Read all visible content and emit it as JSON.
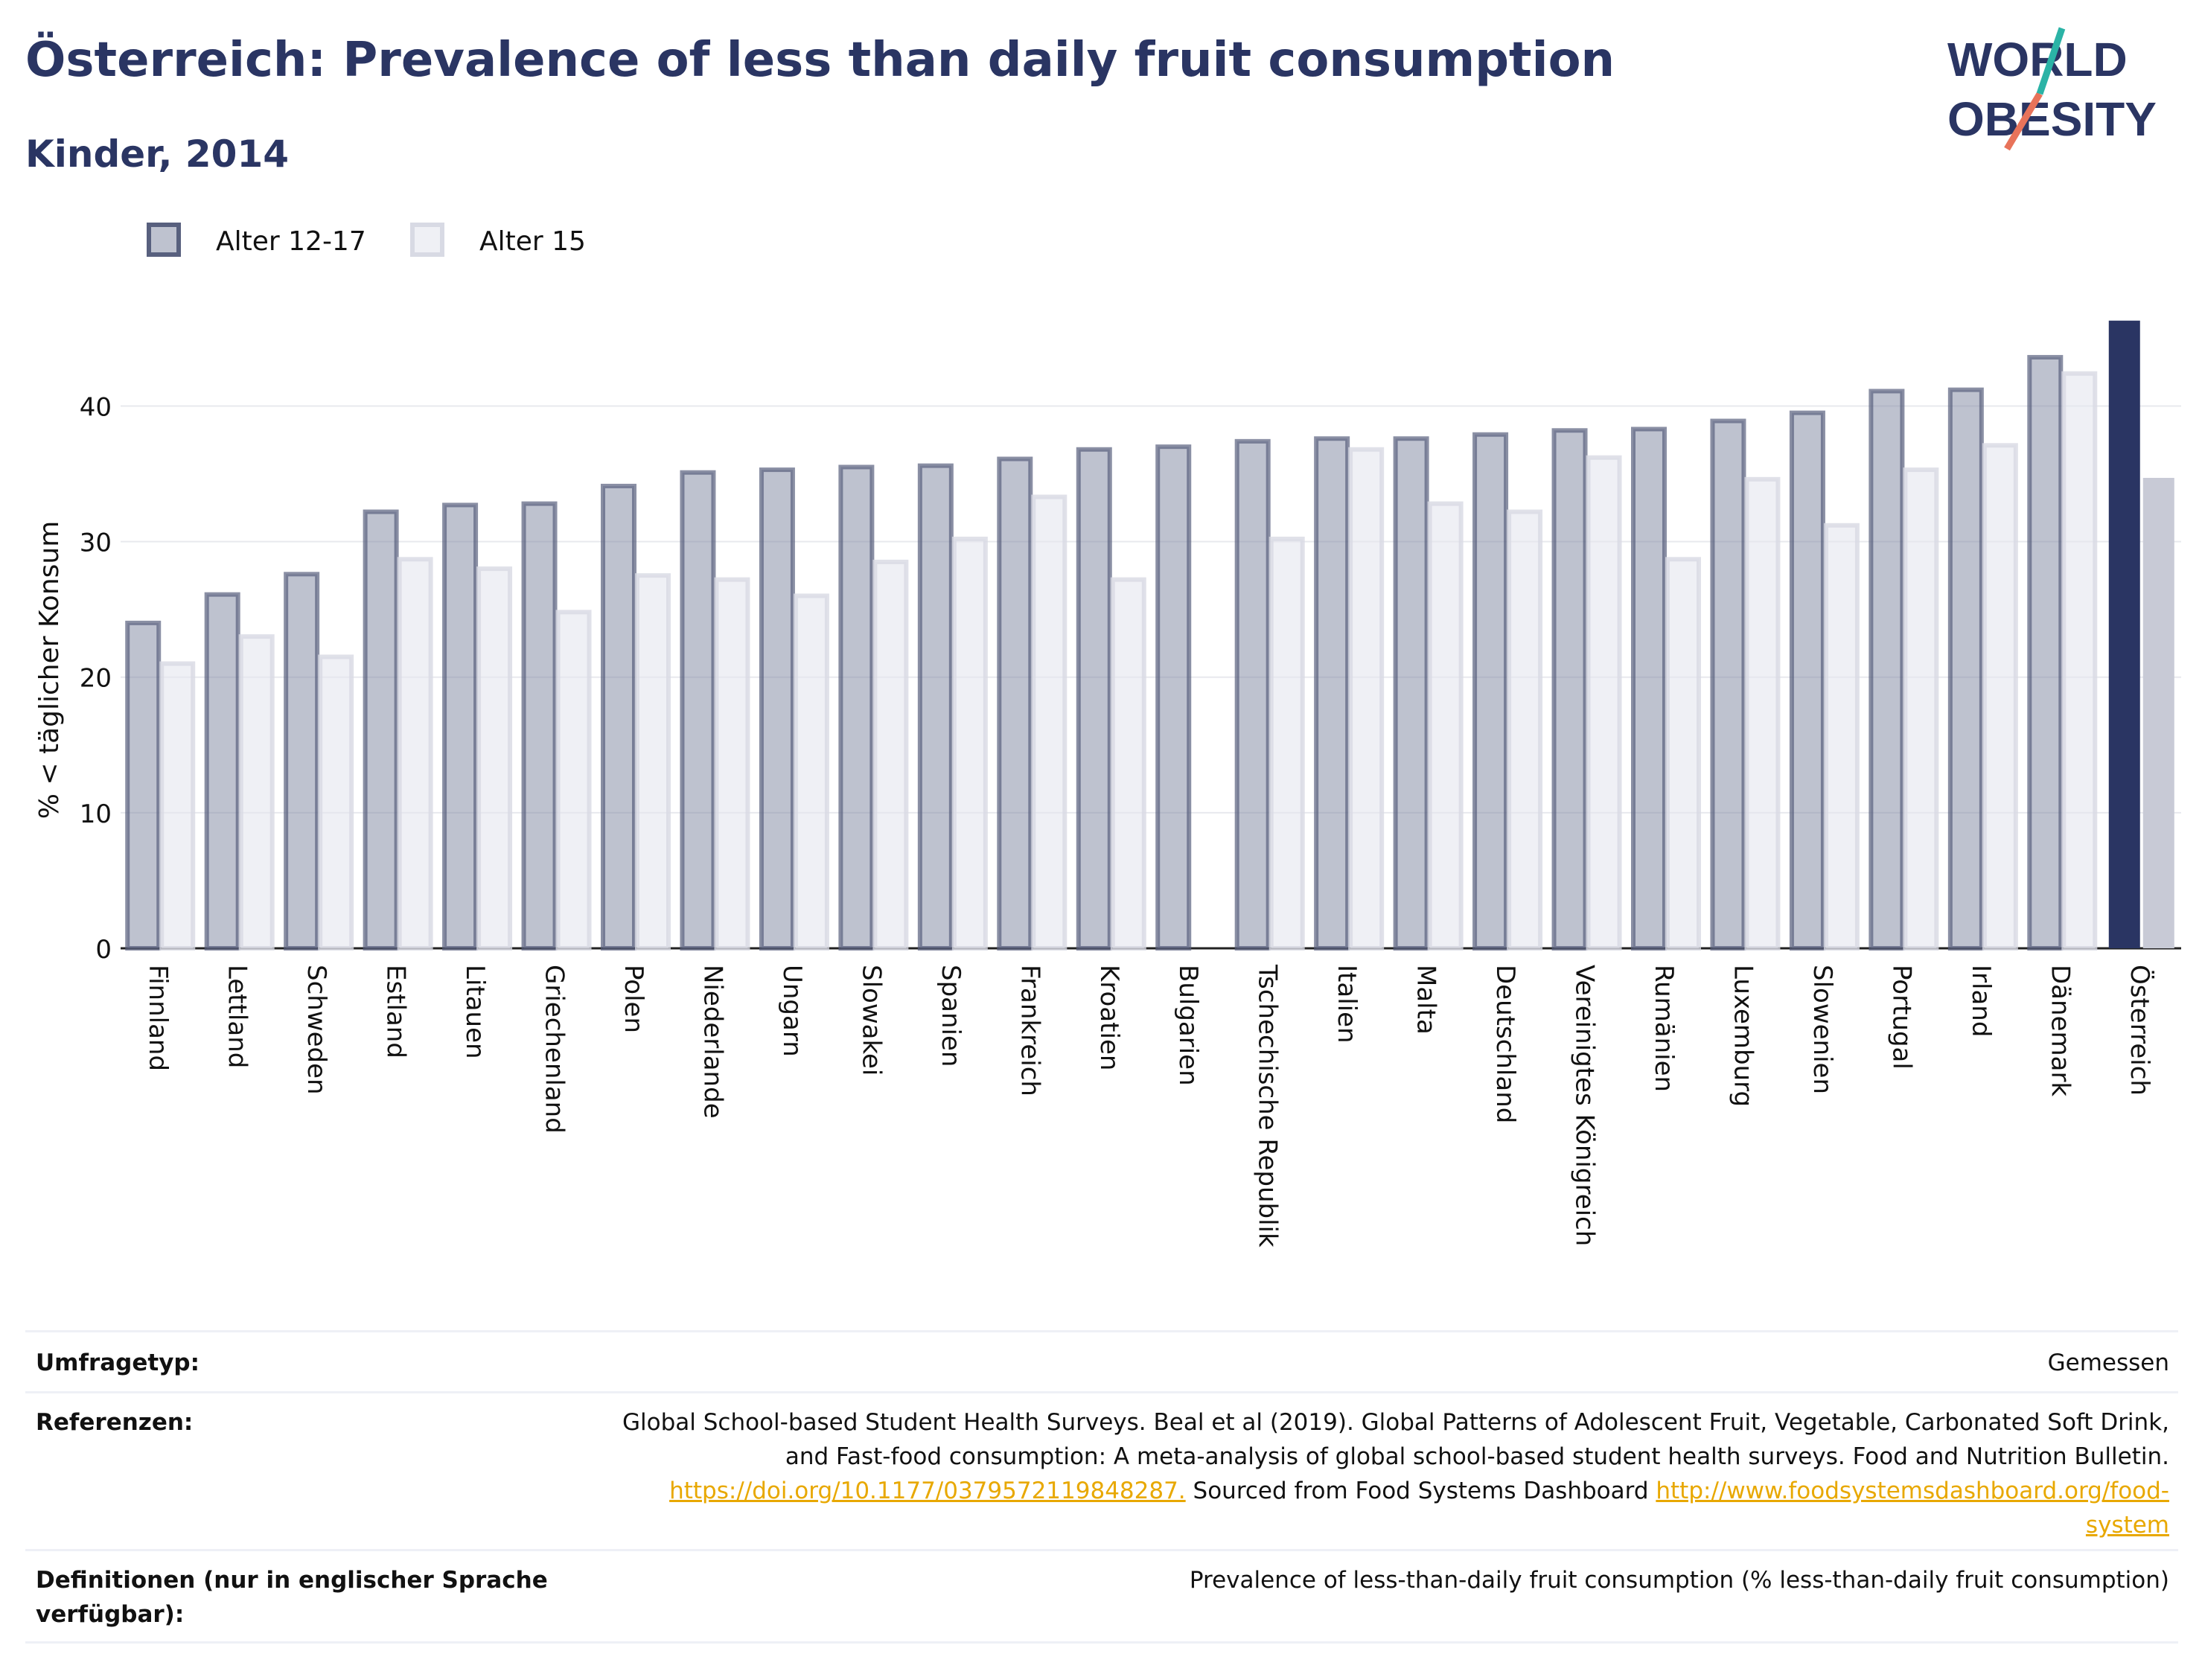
{
  "title": "Österreich: Prevalence of less than daily fruit consumption",
  "subtitle": "Kinder, 2014",
  "logo": {
    "line1": "WORLD",
    "line2": "OBESITY"
  },
  "colors": {
    "s1": "#7e86a0",
    "s2": "#e4e6ee",
    "highlight1": "#2a3563",
    "highlight2": "#c8cad6",
    "text": "#2a3563"
  },
  "chart_data": {
    "type": "bar",
    "ylabel": "% < täglicher Konsum",
    "ylim": [
      0,
      47
    ],
    "yticks": [
      0,
      10,
      20,
      30,
      40
    ],
    "grid": true,
    "legend_position": "top-left",
    "categories": [
      "Finnland",
      "Lettland",
      "Schweden",
      "Estland",
      "Litauen",
      "Griechenland",
      "Polen",
      "Niederlande",
      "Ungarn",
      "Slowakei",
      "Spanien",
      "Frankreich",
      "Kroatien",
      "Bulgarien",
      "Tschechische Republik",
      "Italien",
      "Malta",
      "Deutschland",
      "Vereinigtes Königreich",
      "Rumänien",
      "Luxemburg",
      "Slowenien",
      "Portugal",
      "Irland",
      "Dänemark",
      "Österreich"
    ],
    "highlight": "Österreich",
    "series": [
      {
        "name": "Alter 12-17",
        "values": [
          24.0,
          26.1,
          27.6,
          32.2,
          32.7,
          32.8,
          34.1,
          35.1,
          35.3,
          35.5,
          35.6,
          36.1,
          36.8,
          37.0,
          37.4,
          37.6,
          37.6,
          37.9,
          38.2,
          38.3,
          38.9,
          39.5,
          41.1,
          41.2,
          43.6,
          46.3
        ]
      },
      {
        "name": "Alter 15",
        "values": [
          21.0,
          23.0,
          21.5,
          28.7,
          28.0,
          24.8,
          27.5,
          27.2,
          26.0,
          28.5,
          30.2,
          33.3,
          27.2,
          null,
          30.2,
          36.8,
          32.8,
          32.2,
          36.2,
          28.7,
          34.6,
          31.2,
          35.3,
          37.1,
          42.4,
          34.7
        ]
      }
    ]
  },
  "footer": {
    "survey_label": "Umfragetyp:",
    "survey_value": "Gemessen",
    "refs_label": "Referenzen:",
    "refs_text1": "Global School-based Student Health Surveys. Beal et al (2019). Global Patterns of Adolescent Fruit, Vegetable, Carbonated Soft Drink,",
    "refs_text2": "and Fast-food consumption: A meta-analysis of global school-based student health surveys. Food and Nutrition Bulletin.",
    "refs_link1": "https://doi.org/10.1177/0379572119848287.",
    "refs_text3": " Sourced from Food Systems Dashboard ",
    "refs_link2a": "http://www.foodsystemsdashboard.org/food-",
    "refs_link2b": "system",
    "def_label": "Definitionen (nur in englischer Sprache verfügbar):",
    "def_value": "Prevalence of less-than-daily fruit consumption (% less-than-daily fruit consumption)"
  }
}
